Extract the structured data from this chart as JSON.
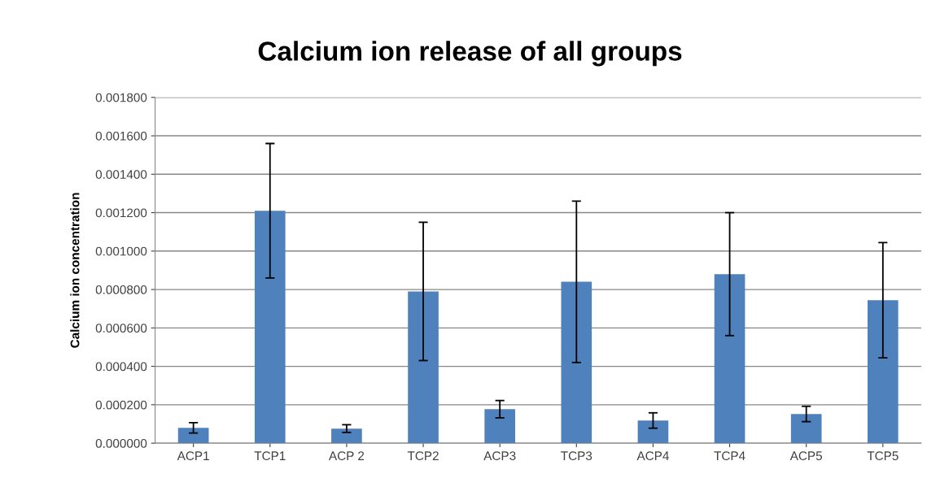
{
  "chart_data": {
    "type": "bar",
    "title": "Calcium ion release of all groups",
    "ylabel": "Calcium ion concentration",
    "categories": [
      "ACP1",
      "TCP1",
      "ACP 2",
      "TCP2",
      "ACP3",
      "TCP3",
      "ACP4",
      "TCP4",
      "ACP5",
      "TCP5"
    ],
    "values": [
      8e-05,
      0.00121,
      7.6e-05,
      0.00079,
      0.000177,
      0.00084,
      0.000118,
      0.00088,
      0.000152,
      0.000744
    ],
    "errors": [
      2.7e-05,
      0.00035,
      2e-05,
      0.00036,
      4.5e-05,
      0.00042,
      4e-05,
      0.00032,
      4e-05,
      0.0003
    ],
    "color": "#4f81bd",
    "ylim": [
      0,
      0.0018
    ],
    "yticks": [
      {
        "value": 0,
        "label": "0.000000"
      },
      {
        "value": 0.0002,
        "label": "0.000200"
      },
      {
        "value": 0.0004,
        "label": "0.000400"
      },
      {
        "value": 0.0006,
        "label": "0.000600"
      },
      {
        "value": 0.0008,
        "label": "0.000800"
      },
      {
        "value": 0.001,
        "label": "0.001000"
      },
      {
        "value": 0.0012,
        "label": "0.001200"
      },
      {
        "value": 0.0014,
        "label": "0.001400"
      },
      {
        "value": 0.0016,
        "label": "0.001600"
      },
      {
        "value": 0.0018,
        "label": "0.001800"
      }
    ],
    "grid": "y"
  }
}
